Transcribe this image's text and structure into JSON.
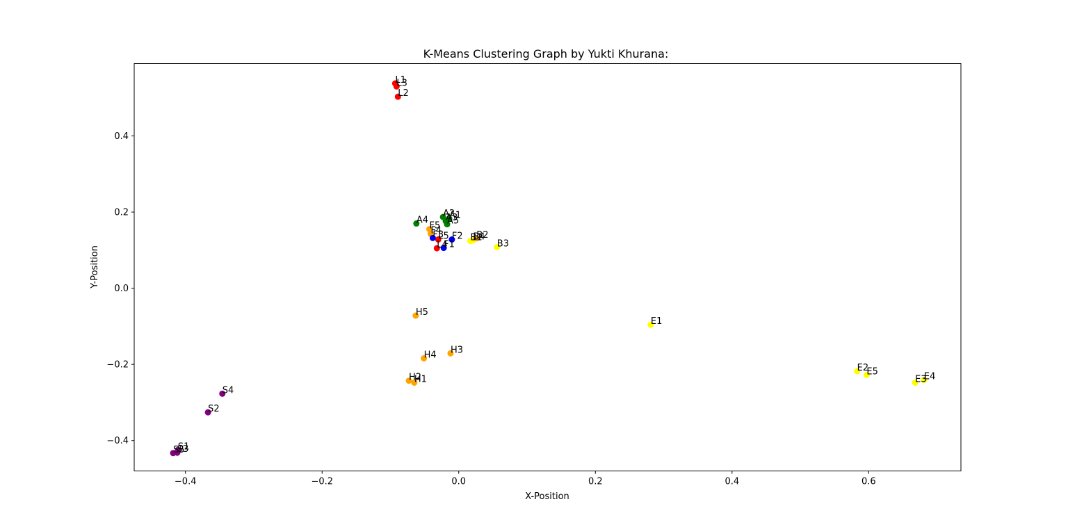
{
  "chart_data": {
    "type": "scatter",
    "title": "K-Means Clustering Graph by Yukti Khurana:",
    "xlabel": "X-Position",
    "ylabel": "Y-Position",
    "xlim": [
      -0.475,
      0.735
    ],
    "ylim": [
      -0.48,
      0.59
    ],
    "xticks": [
      -0.4,
      -0.2,
      0.0,
      0.2,
      0.4,
      0.6
    ],
    "xtick_labels": [
      "−0.4",
      "−0.2",
      "0.0",
      "0.2",
      "0.4",
      "0.6"
    ],
    "yticks": [
      -0.4,
      -0.2,
      0.0,
      0.2,
      0.4
    ],
    "ytick_labels": [
      "−0.4",
      "−0.2",
      "0.0",
      "0.2",
      "0.4"
    ],
    "grid": false,
    "points": [
      {
        "label": "L1",
        "x": -0.093,
        "y": 0.538,
        "color": "#ff0000"
      },
      {
        "label": "L3",
        "x": -0.091,
        "y": 0.53,
        "color": "#ff0000"
      },
      {
        "label": "L2",
        "x": -0.089,
        "y": 0.503,
        "color": "#ff0000"
      },
      {
        "label": "L4",
        "x": -0.032,
        "y": 0.105,
        "color": "#ff0000"
      },
      {
        "label": "L5",
        "x": -0.03,
        "y": 0.128,
        "color": "#ff0000"
      },
      {
        "label": "A2",
        "x": -0.023,
        "y": 0.187,
        "color": "#008000"
      },
      {
        "label": "A1",
        "x": -0.014,
        "y": 0.183,
        "color": "#008000"
      },
      {
        "label": "A3",
        "x": -0.019,
        "y": 0.176,
        "color": "#008000"
      },
      {
        "label": "A5",
        "x": -0.017,
        "y": 0.168,
        "color": "#008000"
      },
      {
        "label": "A4",
        "x": -0.062,
        "y": 0.17,
        "color": "#008000"
      },
      {
        "label": "F5",
        "x": -0.043,
        "y": 0.155,
        "color": "#ffa500"
      },
      {
        "label": "F4",
        "x": -0.041,
        "y": 0.143,
        "color": "#ffa500"
      },
      {
        "label": "F3",
        "x": -0.038,
        "y": 0.132,
        "color": "#0000ff"
      },
      {
        "label": "F2",
        "x": -0.01,
        "y": 0.128,
        "color": "#0000ff"
      },
      {
        "label": "F1",
        "x": -0.022,
        "y": 0.106,
        "color": "#0000ff"
      },
      {
        "label": "B1",
        "x": 0.017,
        "y": 0.124,
        "color": "#ffff00"
      },
      {
        "label": "B4",
        "x": 0.021,
        "y": 0.126,
        "color": "#ffff00"
      },
      {
        "label": "B2",
        "x": 0.026,
        "y": 0.131,
        "color": "#ffa500"
      },
      {
        "label": "B3",
        "x": 0.056,
        "y": 0.108,
        "color": "#ffff00"
      },
      {
        "label": "H5",
        "x": -0.063,
        "y": -0.072,
        "color": "#ffa500"
      },
      {
        "label": "H3",
        "x": -0.012,
        "y": -0.171,
        "color": "#ffa500"
      },
      {
        "label": "H4",
        "x": -0.051,
        "y": -0.184,
        "color": "#ffa500"
      },
      {
        "label": "H2",
        "x": -0.073,
        "y": -0.243,
        "color": "#ffa500"
      },
      {
        "label": "H1",
        "x": -0.065,
        "y": -0.248,
        "color": "#ffa500"
      },
      {
        "label": "E1",
        "x": 0.281,
        "y": -0.096,
        "color": "#ffff00"
      },
      {
        "label": "E2",
        "x": 0.583,
        "y": -0.218,
        "color": "#ffff00"
      },
      {
        "label": "E5",
        "x": 0.597,
        "y": -0.228,
        "color": "#ffff00"
      },
      {
        "label": "E3",
        "x": 0.668,
        "y": -0.248,
        "color": "#ffff00"
      },
      {
        "label": "E4",
        "x": 0.681,
        "y": -0.241,
        "color": "#ffff00"
      },
      {
        "label": "S4",
        "x": -0.346,
        "y": -0.277,
        "color": "#800080"
      },
      {
        "label": "S2",
        "x": -0.367,
        "y": -0.326,
        "color": "#800080"
      },
      {
        "label": "S1",
        "x": -0.411,
        "y": -0.425,
        "color": "#800080"
      },
      {
        "label": "S3",
        "x": -0.412,
        "y": -0.432,
        "color": "#800080"
      },
      {
        "label": "S5",
        "x": -0.418,
        "y": -0.433,
        "color": "#800080"
      }
    ]
  }
}
